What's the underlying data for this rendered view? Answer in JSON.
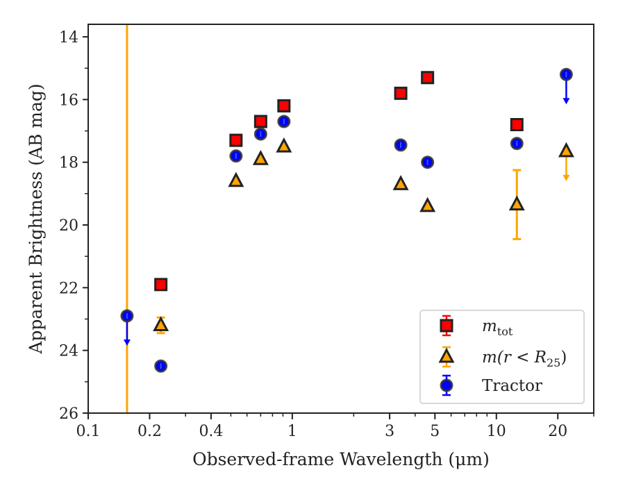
{
  "chart_data": {
    "type": "scatter",
    "xlabel": "Observed-frame Wavelength (μm)",
    "ylabel": "Apparent Brightness (AB mag)",
    "xscale": "log",
    "xlim": [
      0.1,
      30
    ],
    "ylim": [
      26,
      13.6
    ],
    "y_inverted": true,
    "x_ticks": [
      0.1,
      0.2,
      0.4,
      1,
      3,
      5,
      10,
      20
    ],
    "x_tick_labels": [
      "0.1",
      "0.2",
      "0.4",
      "1",
      "3",
      "5",
      "10",
      "20"
    ],
    "y_ticks": [
      14,
      16,
      18,
      20,
      22,
      24,
      26
    ],
    "y_tick_labels": [
      "14",
      "16",
      "18",
      "20",
      "22",
      "24",
      "26"
    ],
    "grid": false,
    "legend_position": "bottom-right",
    "vertical_line": {
      "x": 0.155,
      "color": "#ffa500"
    },
    "series": [
      {
        "name": "m_tot",
        "legend_main": "m",
        "legend_sub": "tot",
        "marker": "square",
        "color": "#ff0000",
        "points": [
          {
            "x": 0.227,
            "y": 21.9
          },
          {
            "x": 0.53,
            "y": 17.3
          },
          {
            "x": 0.7,
            "y": 16.7
          },
          {
            "x": 0.91,
            "y": 16.2
          },
          {
            "x": 3.4,
            "y": 15.8
          },
          {
            "x": 4.6,
            "y": 15.3
          },
          {
            "x": 12.6,
            "y": 16.8
          }
        ]
      },
      {
        "name": "m(r < R25)",
        "legend_main": "m(r < R",
        "legend_sub": "25",
        "legend_close": ")",
        "marker": "triangle",
        "color": "#ffa500",
        "points": [
          {
            "x": 0.227,
            "y": 23.2,
            "err": 0.25
          },
          {
            "x": 0.53,
            "y": 18.6
          },
          {
            "x": 0.7,
            "y": 17.9
          },
          {
            "x": 0.91,
            "y": 17.5
          },
          {
            "x": 3.4,
            "y": 18.7
          },
          {
            "x": 4.6,
            "y": 19.4
          },
          {
            "x": 12.6,
            "y": 19.35,
            "err": 1.1
          },
          {
            "x": 22.0,
            "y": 17.65,
            "upper_limit": true
          }
        ]
      },
      {
        "name": "Tractor",
        "legend_main": "Tractor",
        "marker": "circle",
        "color": "#0000ff",
        "points": [
          {
            "x": 0.155,
            "y": 22.9,
            "upper_limit": true
          },
          {
            "x": 0.227,
            "y": 24.5
          },
          {
            "x": 0.53,
            "y": 17.8
          },
          {
            "x": 0.7,
            "y": 17.1
          },
          {
            "x": 0.91,
            "y": 16.7
          },
          {
            "x": 3.4,
            "y": 17.45
          },
          {
            "x": 4.6,
            "y": 18.0
          },
          {
            "x": 12.6,
            "y": 17.4
          },
          {
            "x": 22.0,
            "y": 15.2,
            "upper_limit": true
          }
        ]
      }
    ]
  }
}
